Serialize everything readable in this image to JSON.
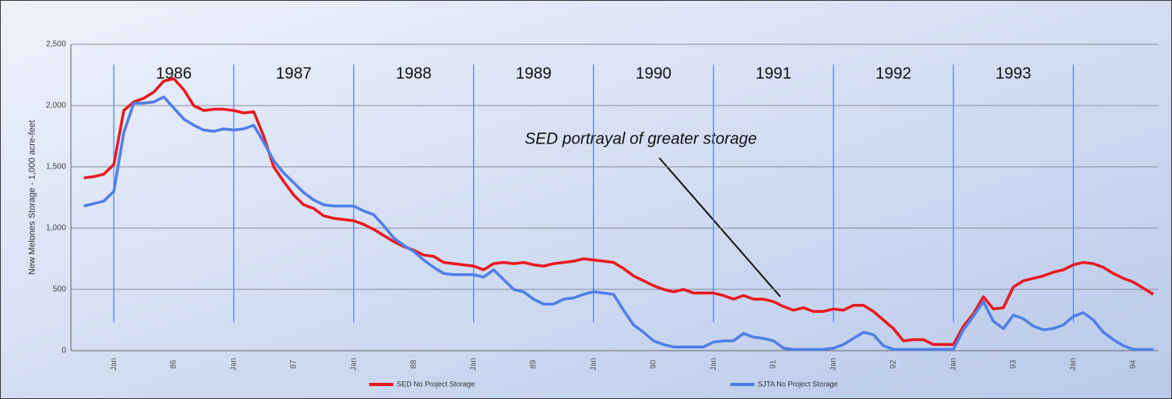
{
  "chart_data": {
    "type": "line",
    "y_label": "New Melones Storage - 1,000 acre-feet",
    "annotation": "SED portrayal of greater storage",
    "period_labels": [
      "1986",
      "1987",
      "1988",
      "1989",
      "1990",
      "1991",
      "1992",
      "1993"
    ],
    "categories": [
      null,
      null,
      null,
      "Jan",
      null,
      null,
      null,
      null,
      null,
      "86",
      null,
      null,
      null,
      null,
      null,
      "Jan",
      null,
      null,
      null,
      null,
      null,
      "87",
      null,
      null,
      null,
      null,
      null,
      "Jan",
      null,
      null,
      null,
      null,
      null,
      "88",
      null,
      null,
      null,
      null,
      null,
      "Jan",
      null,
      null,
      null,
      null,
      null,
      "89",
      null,
      null,
      null,
      null,
      null,
      "Jan",
      null,
      null,
      null,
      null,
      null,
      "90",
      null,
      null,
      null,
      null,
      null,
      "Jan",
      null,
      null,
      null,
      null,
      null,
      "91",
      null,
      null,
      null,
      null,
      null,
      "Jan",
      null,
      null,
      null,
      null,
      null,
      "92",
      null,
      null,
      null,
      null,
      null,
      "Jan",
      null,
      null,
      null,
      null,
      null,
      "93",
      null,
      null,
      null,
      null,
      null,
      "Jan",
      null,
      null,
      null,
      null,
      null,
      "94",
      null,
      null
    ],
    "series": [
      {
        "name": "SED No Project Storage",
        "color": "#e8191f",
        "values": [
          1410,
          1420,
          1440,
          1520,
          1960,
          2030,
          2060,
          2110,
          2200,
          2220,
          2130,
          2000,
          1960,
          1970,
          1970,
          1960,
          1940,
          1950,
          1750,
          1500,
          1380,
          1270,
          1190,
          1160,
          1100,
          1080,
          1070,
          1060,
          1030,
          990,
          940,
          890,
          850,
          820,
          780,
          770,
          720,
          710,
          700,
          690,
          660,
          710,
          720,
          710,
          720,
          700,
          690,
          710,
          720,
          730,
          750,
          740,
          730,
          720,
          670,
          610,
          570,
          530,
          500,
          480,
          500,
          470,
          470,
          470,
          450,
          420,
          450,
          420,
          420,
          400,
          360,
          330,
          350,
          320,
          320,
          340,
          330,
          370,
          370,
          320,
          250,
          180,
          80,
          90,
          90,
          50,
          50,
          50,
          200,
          300,
          440,
          340,
          350,
          520,
          570,
          590,
          610,
          640,
          660,
          700,
          720,
          710,
          680,
          630,
          590,
          560,
          510,
          460
        ]
      },
      {
        "name": "SJTA No Project Storage",
        "color": "#4f7fe6",
        "values": [
          1180,
          1200,
          1220,
          1300,
          1780,
          2020,
          2020,
          2030,
          2070,
          1980,
          1890,
          1840,
          1800,
          1790,
          1810,
          1800,
          1810,
          1840,
          1700,
          1550,
          1450,
          1370,
          1290,
          1230,
          1190,
          1180,
          1180,
          1180,
          1140,
          1110,
          1020,
          920,
          860,
          810,
          740,
          680,
          630,
          620,
          620,
          620,
          600,
          660,
          580,
          500,
          480,
          420,
          380,
          380,
          420,
          430,
          460,
          480,
          470,
          460,
          330,
          210,
          150,
          80,
          50,
          30,
          30,
          30,
          30,
          70,
          80,
          80,
          140,
          110,
          100,
          80,
          20,
          10,
          10,
          10,
          10,
          20,
          50,
          100,
          150,
          130,
          40,
          10,
          10,
          10,
          10,
          10,
          10,
          10,
          170,
          280,
          400,
          240,
          180,
          290,
          260,
          200,
          170,
          180,
          210,
          280,
          310,
          250,
          150,
          90,
          40,
          10,
          10,
          10
        ]
      }
    ],
    "ylim": [
      0,
      2500
    ],
    "yticks": [
      0,
      500,
      {
        "value": 1000,
        "label": "1,000"
      },
      {
        "value": 1500,
        "label": "1,500"
      },
      {
        "value": 2000,
        "label": "2,000"
      },
      {
        "value": 2500,
        "label": "2,500"
      }
    ],
    "grid": true,
    "legend": "bottom"
  }
}
